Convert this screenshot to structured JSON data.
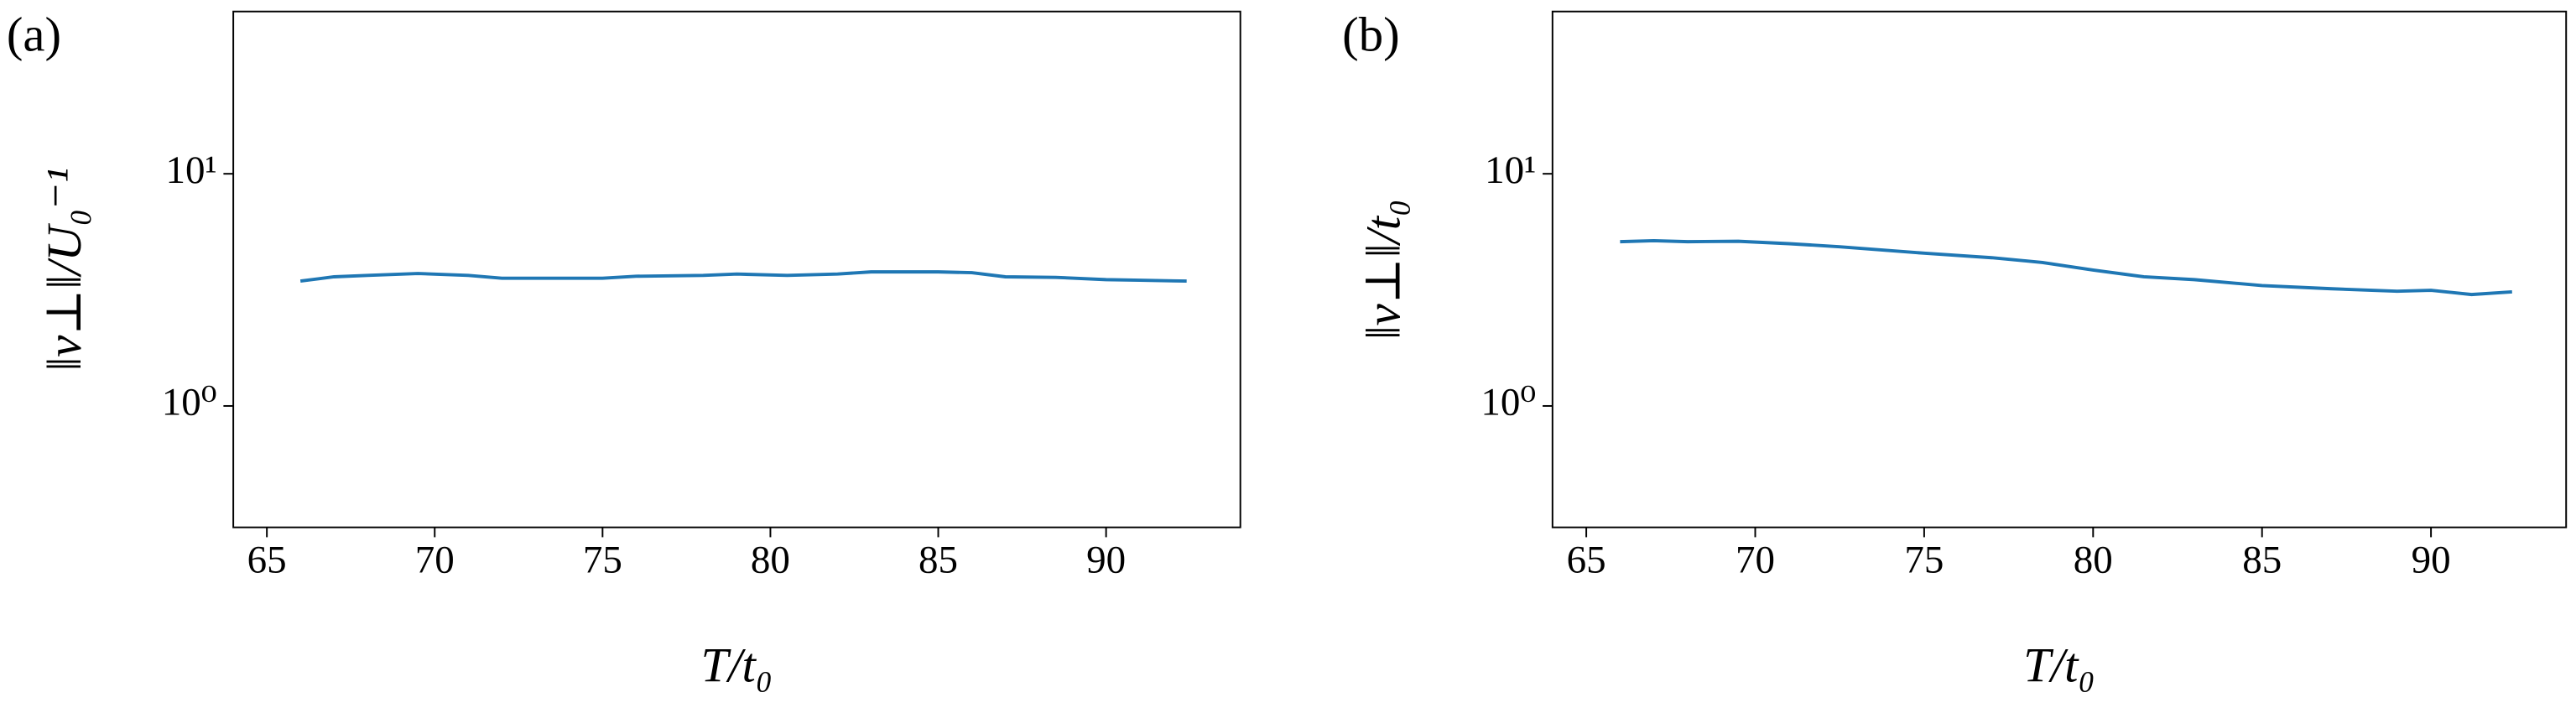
{
  "chart_data": [
    {
      "type": "line",
      "panel_label": "(a)",
      "xlabel": "T/t₀",
      "ylabel": "‖v⊥‖/U₀⁻¹",
      "x": [
        66,
        67,
        68,
        69.5,
        71,
        72,
        74,
        75,
        76,
        78,
        79,
        80.5,
        82,
        83,
        85,
        86,
        87,
        88.5,
        90,
        91,
        92.4
      ],
      "values": [
        3.45,
        3.6,
        3.65,
        3.72,
        3.65,
        3.55,
        3.55,
        3.55,
        3.62,
        3.65,
        3.7,
        3.65,
        3.7,
        3.78,
        3.78,
        3.75,
        3.6,
        3.58,
        3.5,
        3.48,
        3.45
      ],
      "color": "#1f77b4",
      "log_y": true,
      "xlim": [
        64,
        94
      ],
      "xticks": [
        65,
        70,
        75,
        80,
        85,
        90
      ],
      "ylim": [
        0.3,
        50
      ],
      "yticks": [
        {
          "value": 1,
          "label": "10⁰"
        },
        {
          "value": 10,
          "label": "10¹"
        }
      ]
    },
    {
      "type": "line",
      "panel_label": "(b)",
      "xlabel": "T/t₀",
      "ylabel": "‖v⊥‖/t₀",
      "x": [
        66,
        67,
        68,
        69.5,
        71,
        72.5,
        75,
        77,
        78.5,
        80,
        81.5,
        83,
        85,
        87,
        89,
        90,
        91.2,
        92.4
      ],
      "values": [
        5.1,
        5.15,
        5.1,
        5.12,
        5.0,
        4.85,
        4.55,
        4.35,
        4.15,
        3.85,
        3.6,
        3.5,
        3.3,
        3.2,
        3.12,
        3.15,
        3.02,
        3.1
      ],
      "color": "#1f77b4",
      "log_y": true,
      "xlim": [
        64,
        94
      ],
      "xticks": [
        65,
        70,
        75,
        80,
        85,
        90
      ],
      "ylim": [
        0.3,
        50
      ],
      "yticks": [
        {
          "value": 1,
          "label": "10⁰"
        },
        {
          "value": 10,
          "label": "10¹"
        }
      ]
    }
  ]
}
